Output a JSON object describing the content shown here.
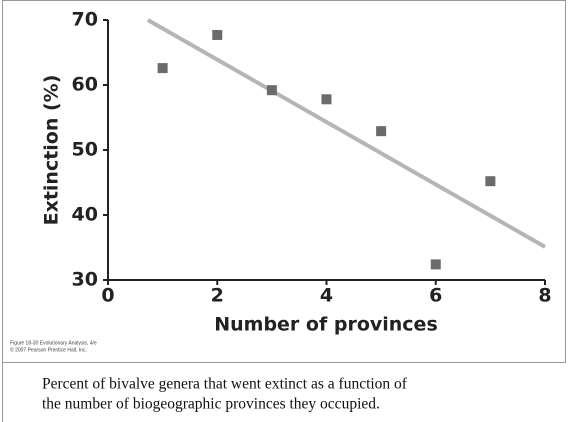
{
  "chart_data": {
    "type": "scatter",
    "x_label": "Number of provinces",
    "y_label": "Extinction (%)",
    "x": [
      1,
      2,
      3,
      4,
      5,
      6,
      7
    ],
    "series": [
      {
        "color": "#6b6b6b",
        "values": [
          62.6,
          67.7,
          59.2,
          57.8,
          52.9,
          32.4,
          45.2
        ]
      }
    ],
    "trendline": {
      "color": "#b5b5b5",
      "x": [
        0.73,
        8
      ],
      "y": [
        70,
        35.1
      ]
    },
    "xlim": [
      0,
      8
    ],
    "ylim": [
      30,
      70
    ],
    "xticks": [
      0,
      2,
      4,
      6,
      8
    ],
    "yticks": [
      30,
      40,
      50,
      60,
      70
    ]
  },
  "credits": [
    "Figure 18-30 Evolutionary Analysis, 4/e",
    "© 2007 Pearson Prentice Hall, Inc."
  ],
  "caption": [
    "Percent of bivalve genera that went extinct as a function of",
    "the number of biogeographic provinces they occupied."
  ]
}
